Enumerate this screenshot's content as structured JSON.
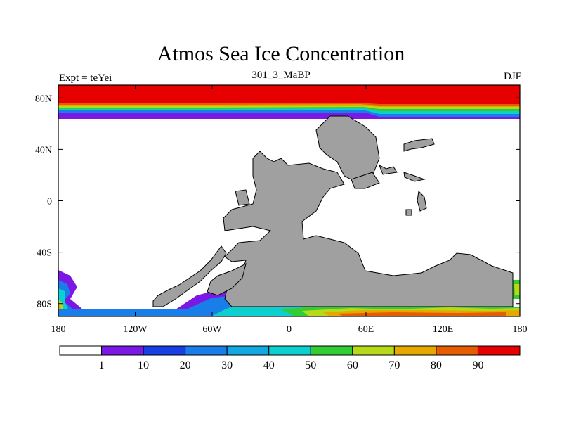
{
  "chart_data": {
    "type": "heatmap",
    "title": "Atmos Sea Ice Concentration",
    "subtitle": "301_3_MaBP",
    "left_label": "Expt = teYei",
    "right_label": "DJF",
    "x_ticks": [
      {
        "value": -180,
        "label": "180"
      },
      {
        "value": -120,
        "label": "120W"
      },
      {
        "value": -60,
        "label": "60W"
      },
      {
        "value": 0,
        "label": "0"
      },
      {
        "value": 60,
        "label": "60E"
      },
      {
        "value": 120,
        "label": "120E"
      },
      {
        "value": 180,
        "label": "180"
      }
    ],
    "y_ticks": [
      {
        "value": 80,
        "label": "80N"
      },
      {
        "value": 40,
        "label": "40N"
      },
      {
        "value": 0,
        "label": "0"
      },
      {
        "value": -40,
        "label": "40S"
      },
      {
        "value": -80,
        "label": "80S"
      }
    ],
    "xlim": [
      -180,
      180
    ],
    "ylim": [
      -90,
      90
    ],
    "colorbar": {
      "levels": [
        "1",
        "10",
        "20",
        "30",
        "40",
        "50",
        "60",
        "70",
        "80",
        "90"
      ],
      "colors": [
        "#ffffff",
        "#7a18e6",
        "#1a3ee6",
        "#1a7ee8",
        "#12a8e2",
        "#0ccfcf",
        "#32cd32",
        "#b6da18",
        "#e6a800",
        "#e65c00",
        "#e60000"
      ]
    },
    "land_color": "#a0a0a0"
  }
}
